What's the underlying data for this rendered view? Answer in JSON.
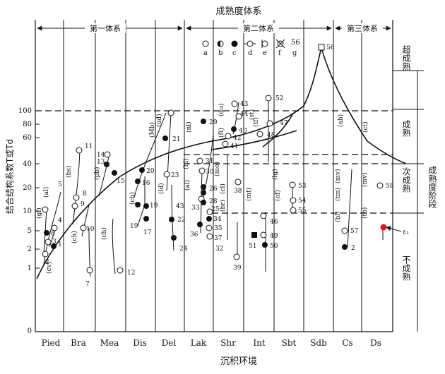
{
  "title": "成熟度体系",
  "x_title": "沉积环境",
  "y_title": "结合结构系数T或Td",
  "right_title": "成熟度阶段",
  "systems": [
    {
      "name": "第一体系"
    },
    {
      "name": "第二体系"
    },
    {
      "name": "第三体系"
    }
  ],
  "stages": [
    "超成熟",
    "成熟",
    "次成熟",
    "不成熟"
  ],
  "environments": [
    "Pied",
    "Bra",
    "Mea",
    "Dis",
    "Del",
    "Lak",
    "Shr",
    "Int",
    "Sbt",
    "Sdb",
    "Cs",
    "Ds"
  ],
  "y_ticks": [
    "100",
    "80",
    "60",
    "40",
    "20",
    "10",
    "5",
    "2",
    "1",
    "0"
  ],
  "legend": {
    "number": "56",
    "items": [
      {
        "key": "a",
        "symbol": "open-circle"
      },
      {
        "key": "b",
        "symbol": "half-circle"
      },
      {
        "key": "c",
        "symbol": "filled-circle"
      },
      {
        "key": "d",
        "symbol": "open-circle-ticks"
      },
      {
        "key": "e",
        "symbol": "open-circle-bar"
      },
      {
        "key": "f",
        "symbol": "crossed-circle"
      },
      {
        "key": "g",
        "symbol": "square-circle"
      }
    ]
  },
  "branch_labels": [
    "(gl)",
    "(cv)",
    "(al)",
    "(bs)",
    "(ch)",
    "(pb)",
    "(ch)",
    "(Mb)",
    "(ud)",
    "(ld)",
    "(ch)",
    "(nl)",
    "(hl)",
    "(al)",
    "(du)",
    "(ft)",
    "(mo)",
    "(cl)",
    "(br)",
    "(st)",
    "(tf)",
    "(lg)",
    "(mt)",
    "(of)",
    "(ab)",
    "(ct)",
    "(mv)",
    "(tm)",
    "(bl)",
    "(mv)",
    "(tb)"
  ],
  "sample_labels": [
    "1",
    "2",
    "3",
    "4",
    "5",
    "6",
    "7",
    "8",
    "9",
    "10",
    "11",
    "12",
    "13",
    "14",
    "15",
    "16",
    "17",
    "19",
    "19",
    "20",
    "21",
    "22",
    "23",
    "24",
    "29",
    "30",
    "31",
    "32",
    "33",
    "34",
    "35",
    "36",
    "37",
    "38",
    "39",
    "40",
    "41",
    "42",
    "43",
    "44",
    "46",
    "47",
    "48",
    "49",
    "50",
    "51",
    "52",
    "53",
    "54",
    "55",
    "56",
    "57",
    "58",
    "2",
    "43",
    "25",
    "26",
    "28"
  ],
  "marker_label": "ε₁",
  "colors": {
    "line": "#111111",
    "highlight": "#e8141c"
  }
}
